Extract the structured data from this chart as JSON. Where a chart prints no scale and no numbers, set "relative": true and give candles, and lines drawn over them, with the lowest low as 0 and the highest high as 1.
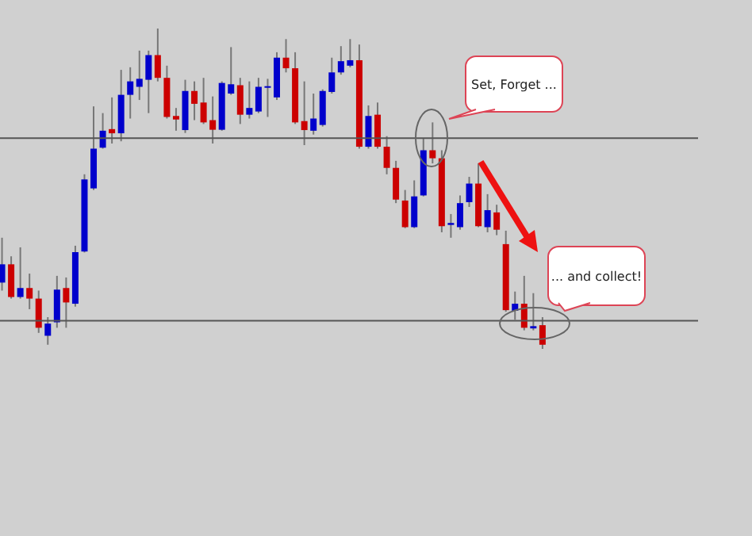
{
  "chart_data": {
    "type": "candlestick",
    "relative": true,
    "categories": [
      null,
      null,
      null,
      null,
      null,
      null,
      null,
      null,
      null,
      null,
      null,
      null,
      null,
      null,
      null,
      null,
      null,
      null,
      null,
      null,
      null,
      null,
      null,
      null,
      null,
      null,
      null,
      null,
      null,
      null,
      null,
      null,
      null,
      null,
      null,
      null,
      null,
      null,
      null,
      null,
      null,
      null,
      null,
      null,
      null,
      null,
      null,
      null,
      null,
      null,
      null,
      null,
      null,
      null,
      null,
      null,
      null,
      null,
      null,
      null
    ],
    "ohlc": [
      [
        0.207,
        0.347,
        0.182,
        0.264
      ],
      [
        0.264,
        0.289,
        0.157,
        0.162
      ],
      [
        0.162,
        0.317,
        0.157,
        0.19
      ],
      [
        0.19,
        0.235,
        0.124,
        0.157
      ],
      [
        0.157,
        0.182,
        0.05,
        0.066
      ],
      [
        0.041,
        0.099,
        0.013,
        0.079
      ],
      [
        0.083,
        0.228,
        0.066,
        0.185
      ],
      [
        0.19,
        0.223,
        0.066,
        0.145
      ],
      [
        0.141,
        0.322,
        0.132,
        0.302
      ],
      [
        0.304,
        0.545,
        0.301,
        0.529
      ],
      [
        0.501,
        0.757,
        0.496,
        0.625
      ],
      [
        0.628,
        0.736,
        0.625,
        0.681
      ],
      [
        0.686,
        0.785,
        0.641,
        0.673
      ],
      [
        0.673,
        0.871,
        0.648,
        0.793
      ],
      [
        0.793,
        0.879,
        0.719,
        0.835
      ],
      [
        0.818,
        0.931,
        0.777,
        0.843
      ],
      [
        0.84,
        0.931,
        0.736,
        0.917
      ],
      [
        0.917,
        1.0,
        0.835,
        0.846
      ],
      [
        0.846,
        0.884,
        0.719,
        0.724
      ],
      [
        0.727,
        0.752,
        0.681,
        0.716
      ],
      [
        0.683,
        0.84,
        0.674,
        0.805
      ],
      [
        0.805,
        0.835,
        0.714,
        0.765
      ],
      [
        0.769,
        0.846,
        0.702,
        0.707
      ],
      [
        0.714,
        0.788,
        0.641,
        0.684
      ],
      [
        0.684,
        0.835,
        0.681,
        0.83
      ],
      [
        0.797,
        0.942,
        0.793,
        0.826
      ],
      [
        0.823,
        0.846,
        0.702,
        0.731
      ],
      [
        0.731,
        0.835,
        0.719,
        0.752
      ],
      [
        0.741,
        0.846,
        0.736,
        0.818
      ],
      [
        0.817,
        0.843,
        0.724,
        0.82
      ],
      [
        0.785,
        0.926,
        0.777,
        0.909
      ],
      [
        0.909,
        0.967,
        0.863,
        0.876
      ],
      [
        0.876,
        0.926,
        0.702,
        0.707
      ],
      [
        0.711,
        0.835,
        0.636,
        0.683
      ],
      [
        0.681,
        0.797,
        0.669,
        0.719
      ],
      [
        0.699,
        0.81,
        0.694,
        0.805
      ],
      [
        0.802,
        0.909,
        0.797,
        0.863
      ],
      [
        0.863,
        0.945,
        0.856,
        0.898
      ],
      [
        0.884,
        0.967,
        0.879,
        0.901
      ],
      [
        0.901,
        0.95,
        0.625,
        0.631
      ],
      [
        0.631,
        0.76,
        0.625,
        0.727
      ],
      [
        0.731,
        0.769,
        0.625,
        0.631
      ],
      [
        0.631,
        0.664,
        0.545,
        0.565
      ],
      [
        0.565,
        0.587,
        0.455,
        0.466
      ],
      [
        0.463,
        0.496,
        0.377,
        0.38
      ],
      [
        0.38,
        0.526,
        0.377,
        0.476
      ],
      [
        0.479,
        0.658,
        0.476,
        0.62
      ],
      [
        0.62,
        0.707,
        0.579,
        0.595
      ],
      [
        0.595,
        0.62,
        0.364,
        0.383
      ],
      [
        0.387,
        0.421,
        0.347,
        0.393
      ],
      [
        0.38,
        0.479,
        0.372,
        0.455
      ],
      [
        0.458,
        0.537,
        0.443,
        0.516
      ],
      [
        0.516,
        0.579,
        0.38,
        0.383
      ],
      [
        0.38,
        0.483,
        0.364,
        0.433
      ],
      [
        0.426,
        0.45,
        0.355,
        0.372
      ],
      [
        0.327,
        0.369,
        0.116,
        0.121
      ],
      [
        0.119,
        0.179,
        0.091,
        0.141
      ],
      [
        0.141,
        0.228,
        0.058,
        0.066
      ],
      [
        0.064,
        0.174,
        0.058,
        0.071
      ],
      [
        0.074,
        0.099,
        0.0,
        0.013
      ]
    ],
    "colors": [
      "#0000cc",
      "#cc0000",
      "#0000cc",
      "#cc0000",
      "#cc0000",
      "#0000cc",
      "#0000cc",
      "#cc0000",
      "#0000cc",
      "#0000cc",
      "#0000cc",
      "#0000cc",
      "#cc0000",
      "#0000cc",
      "#0000cc",
      "#0000cc",
      "#0000cc",
      "#cc0000",
      "#cc0000",
      "#cc0000",
      "#0000cc",
      "#cc0000",
      "#cc0000",
      "#cc0000",
      "#0000cc",
      "#0000cc",
      "#cc0000",
      "#0000cc",
      "#0000cc",
      "#0000cc",
      "#0000cc",
      "#cc0000",
      "#cc0000",
      "#cc0000",
      "#0000cc",
      "#0000cc",
      "#0000cc",
      "#0000cc",
      "#0000cc",
      "#cc0000",
      "#0000cc",
      "#cc0000",
      "#cc0000",
      "#cc0000",
      "#cc0000",
      "#0000cc",
      "#0000cc",
      "#cc0000",
      "#cc0000",
      "#0000cc",
      "#0000cc",
      "#0000cc",
      "#cc0000",
      "#0000cc",
      "#cc0000",
      "#cc0000",
      "#0000cc",
      "#cc0000",
      "#0000cc",
      "#cc0000"
    ],
    "ref_lines": [
      {
        "axis": "y",
        "value": 0.658,
        "color": "#555555"
      },
      {
        "axis": "y",
        "value": 0.088,
        "color": "#555555"
      }
    ],
    "annotations": [
      "Set, Forget ...",
      "... and collect!"
    ]
  }
}
